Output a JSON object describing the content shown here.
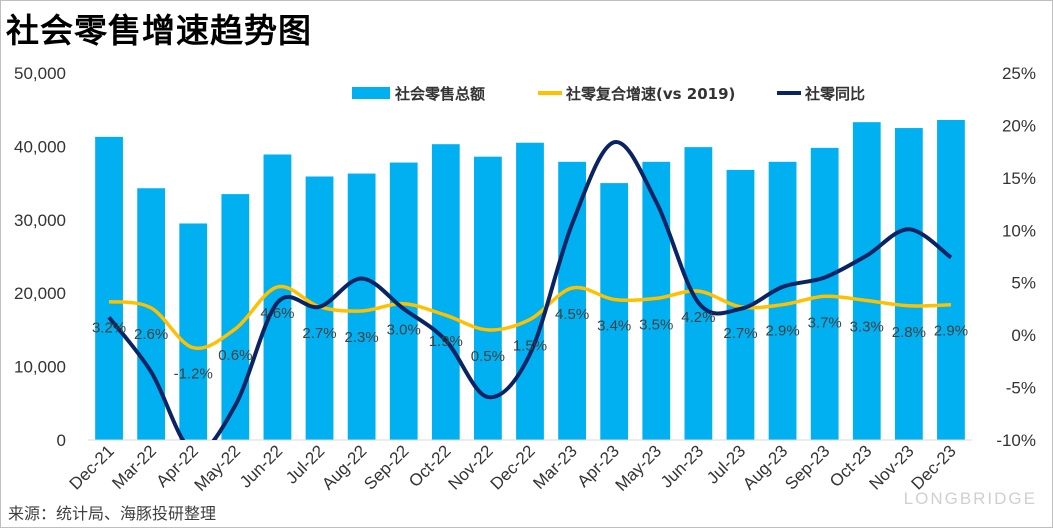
{
  "title": "社会零售增速趋势图",
  "source": "来源：统计局、海豚投研整理",
  "watermark": "LONGBRIDGE",
  "colors": {
    "bar": "#00b0f0",
    "line_cagr": "#ffc000",
    "line_yoy": "#0a2463",
    "axis_text": "#333333",
    "label_text": "#404040"
  },
  "chart_data": {
    "type": "bar",
    "title": "社会零售增速趋势图",
    "categories": [
      "Dec-21",
      "Mar-22",
      "Apr-22",
      "May-22",
      "Jun-22",
      "Jul-22",
      "Aug-22",
      "Sep-22",
      "Oct-22",
      "Nov-22",
      "Dec-22",
      "Mar-23",
      "Apr-23",
      "May-23",
      "Jun-23",
      "Jul-23",
      "Aug-23",
      "Sep-23",
      "Oct-23",
      "Nov-23",
      "Dec-23"
    ],
    "y_left": {
      "min": 0,
      "max": 50000,
      "ticks": [
        "0",
        "10,000",
        "20,000",
        "30,000",
        "40,000",
        "50,000"
      ]
    },
    "y_right": {
      "min": -10,
      "max": 25,
      "ticks": [
        "-10%",
        "-5%",
        "0%",
        "5%",
        "10%",
        "15%",
        "20%",
        "25%"
      ]
    },
    "legend_position": "top",
    "series": [
      {
        "name": "社会零售总额",
        "type": "bar",
        "axis": "left",
        "values": [
          41300,
          34300,
          29500,
          33500,
          38900,
          35900,
          36300,
          37800,
          40300,
          38600,
          40500,
          37900,
          35000,
          37900,
          39900,
          36800,
          37900,
          39800,
          43300,
          42500,
          43600
        ]
      },
      {
        "name": "社零复合增速(vs 2019)",
        "type": "line",
        "axis": "right",
        "values": [
          3.2,
          2.6,
          -1.2,
          0.6,
          4.6,
          2.7,
          2.3,
          3.0,
          1.9,
          0.5,
          1.5,
          4.5,
          3.4,
          3.5,
          4.2,
          2.7,
          2.9,
          3.7,
          3.3,
          2.8,
          2.9
        ],
        "labels": [
          "3.2%",
          "2.6%",
          "-1.2%",
          "0.6%",
          "4.6%",
          "2.7%",
          "2.3%",
          "3.0%",
          "1.9%",
          "0.5%",
          "1.5%",
          "4.5%",
          "3.4%",
          "3.5%",
          "4.2%",
          "2.7%",
          "2.9%",
          "3.7%",
          "3.3%",
          "2.8%",
          "2.9%"
        ]
      },
      {
        "name": "社零同比",
        "type": "line",
        "axis": "right",
        "values": [
          1.7,
          -3.5,
          -11.1,
          -6.7,
          3.1,
          2.7,
          5.4,
          2.5,
          -0.5,
          -5.9,
          -1.8,
          10.6,
          18.4,
          12.7,
          3.1,
          2.5,
          4.6,
          5.5,
          7.6,
          10.1,
          7.4
        ]
      }
    ]
  }
}
